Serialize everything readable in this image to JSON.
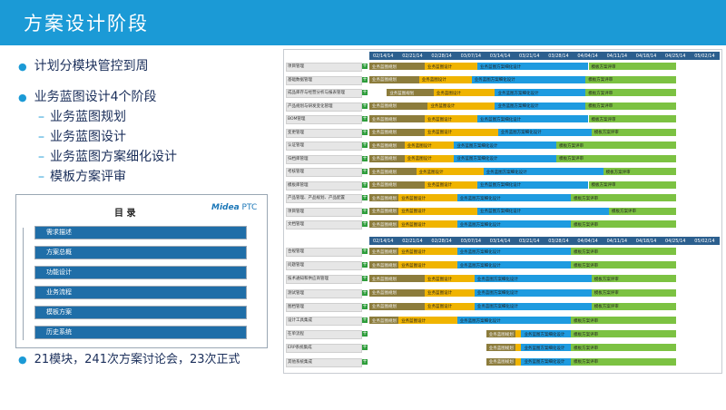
{
  "slide": {
    "title": "方案设计阶段",
    "bullets": [
      "计划分模块管控到周",
      "业务蓝图设计4个阶段"
    ],
    "sub_items": [
      "业务蓝图规划",
      "业务蓝图设计",
      "业务蓝图方案细化设计",
      "模板方案评审"
    ],
    "summary": "21模块，241次方案讨论会，23次正式"
  },
  "toc": {
    "title": "目 录",
    "logo_brand": "Midea",
    "logo_suffix": "PTC",
    "items": [
      "需求描述",
      "方案总概",
      "功能设计",
      "业务流程",
      "模板方案",
      "历史系统"
    ]
  },
  "gantt": {
    "colors": {
      "phase1": "#8c7c3c",
      "phase2": "#f0b400",
      "phase3": "#1e9be0",
      "phase4": "#7cc242",
      "header": "#2c5f8e"
    },
    "timeline_top": [
      "02/14/14",
      "02/21/14",
      "02/28/14",
      "03/07/14",
      "03/14/14",
      "03/21/14",
      "03/28/14",
      "04/04/14",
      "04/11/14",
      "04/18/14",
      "04/25/14",
      "05/02/14"
    ],
    "timeline_bottom": [
      "02/14/14",
      "02/21/14",
      "02/28/14",
      "03/07/14",
      "03/14/14",
      "03/21/14",
      "03/28/14",
      "04/04/14",
      "04/11/14",
      "04/18/14",
      "04/25/14",
      "05/02/14"
    ],
    "phase_labels": [
      "业务蓝图规划",
      "业务蓝图设计",
      "业务蓝图方案细化设计",
      "模板方案评审"
    ],
    "rows_top": [
      {
        "label": "项目管理",
        "p1": [
          0,
          1.9
        ],
        "p2": [
          1.9,
          3.7
        ],
        "p3": [
          3.7,
          7.5
        ],
        "p4": [
          7.5,
          10.5
        ]
      },
      {
        "label": "基础数据管理",
        "p1": [
          0,
          1.7
        ],
        "p2": [
          1.7,
          3.5
        ],
        "p3": [
          3.5,
          7.4
        ],
        "p4": [
          7.4,
          10.5
        ]
      },
      {
        "label": "成品库存与经营分析与报表管理",
        "p1": [
          0.6,
          2.2
        ],
        "p2": [
          2.2,
          4.3
        ],
        "p3": [
          4.3,
          7.4
        ],
        "p4": [
          7.4,
          10.5
        ]
      },
      {
        "label": "产品规划与研发变化管理",
        "p1": [
          0,
          2.0
        ],
        "p2": [
          2.0,
          4.3
        ],
        "p3": [
          4.3,
          7.4
        ],
        "p4": [
          7.4,
          10.5
        ]
      },
      {
        "label": "BOM管理",
        "p1": [
          0,
          1.9
        ],
        "p2": [
          1.9,
          3.7
        ],
        "p3": [
          3.7,
          7.5
        ],
        "p4": [
          7.5,
          10.5
        ]
      },
      {
        "label": "变更管理",
        "p1": [
          0,
          1.9
        ],
        "p2": [
          1.9,
          4.4
        ],
        "p3": [
          4.4,
          7.6
        ],
        "p4": [
          7.6,
          10.5
        ]
      },
      {
        "label": "认证管理",
        "p1": [
          0,
          1.2
        ],
        "p2": [
          1.2,
          2.9
        ],
        "p3": [
          2.9,
          6.4
        ],
        "p4": [
          6.4,
          10.5
        ]
      },
      {
        "label": "归档库管理",
        "p1": [
          0,
          1.2
        ],
        "p2": [
          1.2,
          2.9
        ],
        "p3": [
          2.9,
          6.4
        ],
        "p4": [
          6.4,
          10.5
        ]
      },
      {
        "label": "考核管理",
        "p1": [
          0,
          1.6
        ],
        "p2": [
          1.6,
          3.9
        ],
        "p3": [
          3.9,
          8.0
        ],
        "p4": [
          8.0,
          10.5
        ]
      },
      {
        "label": "模板库管理",
        "p1": [
          0,
          1.9
        ],
        "p2": [
          1.9,
          3.7
        ],
        "p3": [
          3.7,
          7.5
        ],
        "p4": [
          7.5,
          10.5
        ]
      },
      {
        "label": "产品管理、产品规划、产品配置",
        "p1": [
          0,
          1.0
        ],
        "p2": [
          1.0,
          3.0
        ],
        "p3": [
          3.0,
          6.9
        ],
        "p4": [
          6.9,
          10.5
        ]
      },
      {
        "label": "项目管理",
        "p1": [
          0,
          1.0
        ],
        "p2": [
          1.0,
          3.7
        ],
        "p3": [
          3.7,
          8.2
        ],
        "p4": [
          8.2,
          10.5
        ]
      },
      {
        "label": "文档管理",
        "p1": [
          0,
          1.0
        ],
        "p2": [
          1.0,
          3.0
        ],
        "p3": [
          3.0,
          6.9
        ],
        "p4": [
          6.9,
          10.5
        ]
      }
    ],
    "rows_bottom": [
      {
        "label": "合规管理",
        "p1": [
          0,
          1.0
        ],
        "p2": [
          1.0,
          3.0
        ],
        "p3": [
          3.0,
          6.9
        ],
        "p4": [
          6.9,
          10.5
        ]
      },
      {
        "label": "问题管理",
        "p1": [
          0,
          1.0
        ],
        "p2": [
          1.0,
          3.0
        ],
        "p3": [
          3.0,
          6.9
        ],
        "p4": [
          6.9,
          10.5
        ]
      },
      {
        "label": "技术通知和供应商管理",
        "p1": [
          0,
          1.9
        ],
        "p2": [
          1.9,
          3.6
        ],
        "p3": [
          3.6,
          7.6
        ],
        "p4": [
          7.6,
          10.5
        ]
      },
      {
        "label": "测试管理",
        "p1": [
          0,
          1.9
        ],
        "p2": [
          1.9,
          3.6
        ],
        "p3": [
          3.6,
          7.6
        ],
        "p4": [
          7.6,
          10.5
        ]
      },
      {
        "label": "图档管理",
        "p1": [
          0,
          1.9
        ],
        "p2": [
          1.9,
          3.6
        ],
        "p3": [
          3.6,
          7.6
        ],
        "p4": [
          7.6,
          10.5
        ]
      },
      {
        "label": "设计工具集成",
        "p1": [
          0,
          1.0
        ],
        "p2": [
          1.0,
          3.0
        ],
        "p3": [
          3.0,
          6.9
        ],
        "p4": [
          6.9,
          10.5
        ]
      },
      {
        "label": "在单流程",
        "p1": [
          4.0,
          5.0
        ],
        "p2": [
          5.0,
          5.2
        ],
        "p3": [
          5.2,
          6.9
        ],
        "p4": [
          6.9,
          10.5
        ]
      },
      {
        "label": "ERP系统集成",
        "p1": [
          4.0,
          5.0
        ],
        "p2": [
          5.0,
          5.2
        ],
        "p3": [
          5.2,
          6.9
        ],
        "p4": [
          6.9,
          10.5
        ]
      },
      {
        "label": "其他系统集成",
        "p1": [
          4.0,
          5.0
        ],
        "p2": [
          5.0,
          5.2
        ],
        "p3": [
          5.2,
          6.9
        ],
        "p4": [
          6.9,
          10.5
        ]
      }
    ]
  }
}
